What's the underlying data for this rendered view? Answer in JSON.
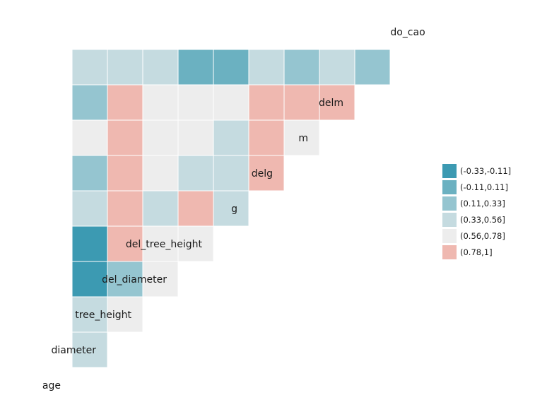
{
  "chart_data": {
    "type": "heatmap",
    "subtype": "correlation-matrix-lower-triangle",
    "variables": [
      "age",
      "diameter",
      "tree_height",
      "del_diameter",
      "del_tree_height",
      "g",
      "delg",
      "m",
      "delm",
      "do_cao"
    ],
    "bins": [
      {
        "label": "(-0.33,-0.11]",
        "color": "#3c9ab2"
      },
      {
        "label": "(-0.11,0.11]",
        "color": "#6bb1c1"
      },
      {
        "label": "(0.11,0.33]",
        "color": "#95c5d0"
      },
      {
        "label": "(0.33,0.56]",
        "color": "#c5dbe0"
      },
      {
        "label": "(0.56,0.78]",
        "color": "#ededed"
      },
      {
        "label": "(0.78,1]",
        "color": "#efb8b0"
      }
    ],
    "cells": [
      {
        "row": "diameter",
        "col": "age",
        "bin": 3
      },
      {
        "row": "tree_height",
        "col": "age",
        "bin": 3
      },
      {
        "row": "tree_height",
        "col": "diameter",
        "bin": 4
      },
      {
        "row": "del_diameter",
        "col": "age",
        "bin": 0
      },
      {
        "row": "del_diameter",
        "col": "diameter",
        "bin": 2
      },
      {
        "row": "del_diameter",
        "col": "tree_height",
        "bin": 4
      },
      {
        "row": "del_tree_height",
        "col": "age",
        "bin": 0
      },
      {
        "row": "del_tree_height",
        "col": "diameter",
        "bin": 5
      },
      {
        "row": "del_tree_height",
        "col": "tree_height",
        "bin": 4
      },
      {
        "row": "del_tree_height",
        "col": "del_diameter",
        "bin": 4
      },
      {
        "row": "g",
        "col": "age",
        "bin": 3
      },
      {
        "row": "g",
        "col": "diameter",
        "bin": 5
      },
      {
        "row": "g",
        "col": "tree_height",
        "bin": 3
      },
      {
        "row": "g",
        "col": "del_diameter",
        "bin": 5
      },
      {
        "row": "g",
        "col": "del_tree_height",
        "bin": 3
      },
      {
        "row": "delg",
        "col": "age",
        "bin": 2
      },
      {
        "row": "delg",
        "col": "diameter",
        "bin": 5
      },
      {
        "row": "delg",
        "col": "tree_height",
        "bin": 4
      },
      {
        "row": "delg",
        "col": "del_diameter",
        "bin": 3
      },
      {
        "row": "delg",
        "col": "del_tree_height",
        "bin": 3
      },
      {
        "row": "delg",
        "col": "g",
        "bin": 5
      },
      {
        "row": "m",
        "col": "age",
        "bin": 4
      },
      {
        "row": "m",
        "col": "diameter",
        "bin": 5
      },
      {
        "row": "m",
        "col": "tree_height",
        "bin": 4
      },
      {
        "row": "m",
        "col": "del_diameter",
        "bin": 4
      },
      {
        "row": "m",
        "col": "del_tree_height",
        "bin": 3
      },
      {
        "row": "m",
        "col": "g",
        "bin": 5
      },
      {
        "row": "m",
        "col": "delg",
        "bin": 4
      },
      {
        "row": "delm",
        "col": "age",
        "bin": 2
      },
      {
        "row": "delm",
        "col": "diameter",
        "bin": 5
      },
      {
        "row": "delm",
        "col": "tree_height",
        "bin": 4
      },
      {
        "row": "delm",
        "col": "del_diameter",
        "bin": 4
      },
      {
        "row": "delm",
        "col": "del_tree_height",
        "bin": 4
      },
      {
        "row": "delm",
        "col": "g",
        "bin": 5
      },
      {
        "row": "delm",
        "col": "delg",
        "bin": 5
      },
      {
        "row": "delm",
        "col": "m",
        "bin": 5
      },
      {
        "row": "do_cao",
        "col": "age",
        "bin": 3
      },
      {
        "row": "do_cao",
        "col": "diameter",
        "bin": 3
      },
      {
        "row": "do_cao",
        "col": "tree_height",
        "bin": 3
      },
      {
        "row": "do_cao",
        "col": "del_diameter",
        "bin": 1
      },
      {
        "row": "do_cao",
        "col": "del_tree_height",
        "bin": 1
      },
      {
        "row": "do_cao",
        "col": "g",
        "bin": 3
      },
      {
        "row": "do_cao",
        "col": "delg",
        "bin": 2
      },
      {
        "row": "do_cao",
        "col": "m",
        "bin": 3
      },
      {
        "row": "do_cao",
        "col": "delm",
        "bin": 2
      }
    ],
    "legend_position": "right",
    "grid": false
  }
}
